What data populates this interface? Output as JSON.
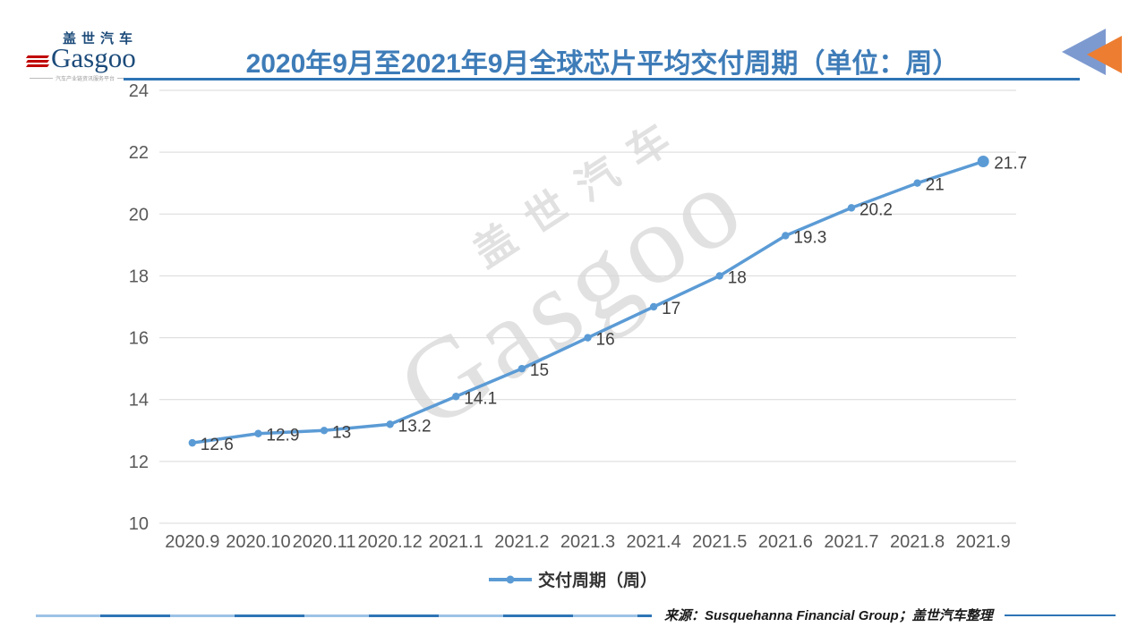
{
  "header": {
    "logo": {
      "brand_cn": "盖世汽车",
      "brand_en": "Gasgoo",
      "tagline": "汽车产业链资讯服务平台"
    },
    "title": "2020年9月至2021年9月全球芯片平均交付周期（单位：周）"
  },
  "chart_data": {
    "type": "line",
    "title": "2020年9月至2021年9月全球芯片平均交付周期（单位：周）",
    "categories": [
      "2020.9",
      "2020.10",
      "2020.11",
      "2020.12",
      "2021.1",
      "2021.2",
      "2021.3",
      "2021.4",
      "2021.5",
      "2021.6",
      "2021.7",
      "2021.8",
      "2021.9"
    ],
    "series": [
      {
        "name": "交付周期（周）",
        "values": [
          12.6,
          12.9,
          13,
          13.2,
          14.1,
          15,
          16,
          17,
          18,
          19.3,
          20.2,
          21,
          21.7
        ]
      }
    ],
    "xlabel": "",
    "ylabel": "",
    "ylim": [
      10,
      24
    ],
    "ytick_step": 2,
    "grid": true,
    "legend_position": "bottom",
    "data_labels": true
  },
  "legend": {
    "label": "交付周期（周）"
  },
  "source": {
    "text": "来源：Susquehanna Financial Group；盖世汽车整理"
  },
  "watermark": {
    "line1": "盖世汽车",
    "line2": "Gasgoo"
  },
  "colors": {
    "title": "#3E7CB8",
    "accent_line": "#2E74B5",
    "series": "#5B9BD5",
    "grid": "#D9D9D9",
    "axis_text": "#595959",
    "data_label": "#3F3F3F",
    "triangle_blue": "#7D9AD0",
    "triangle_orange": "#ED7D31",
    "logo_navy": "#1C4B7A",
    "logo_red": "#C00000"
  }
}
